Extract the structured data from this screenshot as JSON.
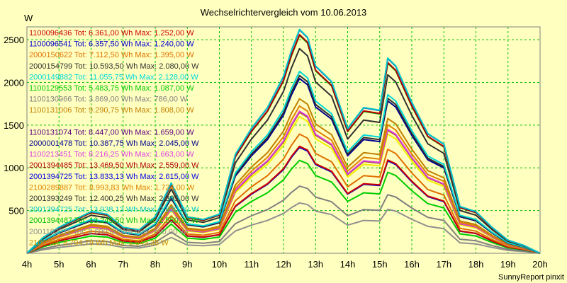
{
  "chart_data": {
    "type": "line",
    "title": "Wechselrichtervergleich vom 10.06.2013",
    "ylabel": "W",
    "xlabel": "",
    "footer": "SunnyReport pinxit",
    "grid": true,
    "legend_placement": "top-left",
    "ylim": [
      0,
      2650
    ],
    "x_ticks": [
      "4h",
      "5h",
      "6h",
      "7h",
      "8h",
      "9h",
      "10h",
      "11h",
      "12h",
      "13h",
      "14h",
      "15h",
      "16h",
      "17h",
      "18h",
      "19h",
      "20h"
    ],
    "y_ticks": [
      500,
      1000,
      1500,
      2000,
      2500
    ],
    "x": [
      "4:00",
      "4:30",
      "5:00",
      "5:30",
      "6:00",
      "6:30",
      "7:00",
      "7:30",
      "8:00",
      "8:30",
      "9:00",
      "9:30",
      "10:00",
      "10:30",
      "11:00",
      "11:30",
      "12:00",
      "12:15",
      "12:30",
      "12:45",
      "13:00",
      "13:30",
      "14:00",
      "14:30",
      "15:00",
      "15:15",
      "15:30",
      "16:00",
      "16:30",
      "17:00",
      "17:30",
      "18:00",
      "18:30",
      "19:00",
      "19:30",
      "20:00"
    ],
    "profile": [
      0,
      0.06,
      0.1,
      0.13,
      0.16,
      0.15,
      0.1,
      0.09,
      0.14,
      0.27,
      0.14,
      0.13,
      0.15,
      0.38,
      0.48,
      0.56,
      0.68,
      0.78,
      0.86,
      0.83,
      0.72,
      0.66,
      0.48,
      0.56,
      0.55,
      0.75,
      0.72,
      0.58,
      0.46,
      0.42,
      0.18,
      0.16,
      0.1,
      0.05,
      0.03,
      0
    ],
    "series": [
      {
        "name": "1100096436 Tot: 6.361,00 Wh Max: 1.252,00 W",
        "color": "#cc0000",
        "max": 1252
      },
      {
        "name": "1100096541 Tot: 6.357,50 Wh Max: 1.240,00 W",
        "color": "#0000cc",
        "max": 1240
      },
      {
        "name": "2000150622 Tot: 7.112,50 Wh Max: 1.395,00 W",
        "color": "#e07000",
        "max": 1395
      },
      {
        "name": "2000154799 Tot: 10.593,50 Wh Max: 2.080,00 W",
        "color": "#303030",
        "max": 2080
      },
      {
        "name": "2000149882 Tot: 11.055,75 Wh Max: 2.128,00 W",
        "color": "#00d8d8",
        "max": 2128
      },
      {
        "name": "1100129553 Tot: 5.483,75 Wh Max: 1.087,00 W",
        "color": "#00cc00",
        "max": 1087
      },
      {
        "name": "1100130966 Tot: 3.869,00 Wh Max: 786,00 W",
        "color": "#808080",
        "max": 786
      },
      {
        "name": "1100131006 Tot: 9.290,75 Wh Max: 1.808,00 W",
        "color": "#c08000",
        "max": 1808
      },
      {
        "name": "",
        "color": "#f0f000",
        "max": 1600
      },
      {
        "name": "1100131074 Tot: 8.447,00 Wh Max: 1.659,00 W",
        "color": "#600080",
        "max": 1659
      },
      {
        "name": "2000001478 Tot: 10.387,75 Wh Max: 2.045,00 W",
        "color": "#000090",
        "max": 2045
      },
      {
        "name": "1100213451 Tot: 8.216,25 Wh Max: 1.663,00 W",
        "color": "#e040e0",
        "max": 1663
      },
      {
        "name": "2001394485 Tot: 13.469,50 Wh Max: 2.559,00 W",
        "color": "#b00000",
        "max": 2559
      },
      {
        "name": "2001394725 Tot: 13.833,13 Wh Max: 2.615,00 W",
        "color": "#0000e0",
        "max": 2615
      },
      {
        "name": "2100289887 Tot: 8.993,83 Wh Max: 1.724,00 W",
        "color": "#e08000",
        "max": 1724
      },
      {
        "name": "2001393249 Tot: 12.400,25 Wh Max: 2.395,00 W",
        "color": "#303030",
        "max": 2395
      },
      {
        "name": "2001394725 Tot: 13.938,13 Wh Max: 2.620,00 W",
        "color": "#00c8c8",
        "max": 2620
      },
      {
        "name": "2001394487 Tot: 13.245,50 Wh Max: 2.550,00 W",
        "color": "#00c000",
        "max": 2550
      },
      {
        "name": "2001102311 Tot: 2.600,00 Wh Max: 590,00 W",
        "color": "#909090",
        "max": 590
      },
      {
        "name": "2100 Tot: 8.794,79 Wh Max: 1.649,38 W",
        "color": "#c89000",
        "max": 1649
      }
    ]
  }
}
